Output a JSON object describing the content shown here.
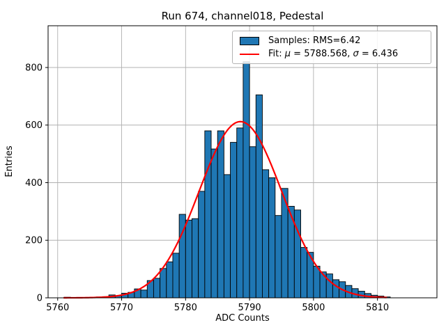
{
  "figure": {
    "title": "Run 674, channel018, Pedestal",
    "xlabel": "ADC Counts",
    "ylabel": "Entries"
  },
  "legend": {
    "samples_label": "Samples: RMS=6.42",
    "fit_prefix": "Fit: ",
    "fit_mu_symbol": "μ",
    "fit_mu_text": " = 5788.568, ",
    "fit_sigma_symbol": "σ",
    "fit_sigma_text": " = 6.436",
    "swatch_color": "#1f77b4",
    "line_color": "#ff0000"
  },
  "chart_data": {
    "type": "bar",
    "subtype": "histogram",
    "title": "Run 674, channel018, Pedestal",
    "xlabel": "ADC Counts",
    "ylabel": "Entries",
    "xlim": [
      5758.5,
      5819.3
    ],
    "ylim": [
      0,
      945
    ],
    "xticks": [
      5760,
      5770,
      5780,
      5790,
      5800,
      5810
    ],
    "yticks": [
      0,
      200,
      400,
      600,
      800
    ],
    "grid": true,
    "grid_color": "#b0b0b0",
    "legend_position": "upper right",
    "bar_color": "#1f77b4",
    "bar_edge_color": "#000000",
    "bin_width": 1,
    "bin_lefts": [
      5761,
      5762,
      5763,
      5764,
      5765,
      5766,
      5767,
      5768,
      5769,
      5770,
      5771,
      5772,
      5773,
      5774,
      5775,
      5776,
      5777,
      5778,
      5779,
      5780,
      5781,
      5782,
      5783,
      5784,
      5785,
      5786,
      5787,
      5788,
      5789,
      5790,
      5791,
      5792,
      5793,
      5794,
      5795,
      5796,
      5797,
      5798,
      5799,
      5800,
      5801,
      5802,
      5803,
      5804,
      5805,
      5806,
      5807,
      5808,
      5809,
      5810,
      5811
    ],
    "counts": [
      2,
      1,
      1,
      1,
      2,
      3,
      4,
      10,
      7,
      16,
      19,
      31,
      27,
      60,
      68,
      102,
      125,
      155,
      290,
      270,
      275,
      370,
      580,
      517,
      580,
      428,
      540,
      590,
      820,
      525,
      705,
      445,
      417,
      286,
      380,
      318,
      305,
      175,
      158,
      110,
      90,
      83,
      63,
      56,
      43,
      32,
      23,
      15,
      9,
      6,
      3
    ],
    "fit": {
      "type": "gaussian",
      "mu": 5788.568,
      "sigma": 6.436,
      "amplitude": 612,
      "color": "#ff0000",
      "x_range": [
        5761,
        5811.5
      ]
    },
    "stats": {
      "rms": 6.42,
      "fit_mu": 5788.568,
      "fit_sigma": 6.436
    }
  }
}
